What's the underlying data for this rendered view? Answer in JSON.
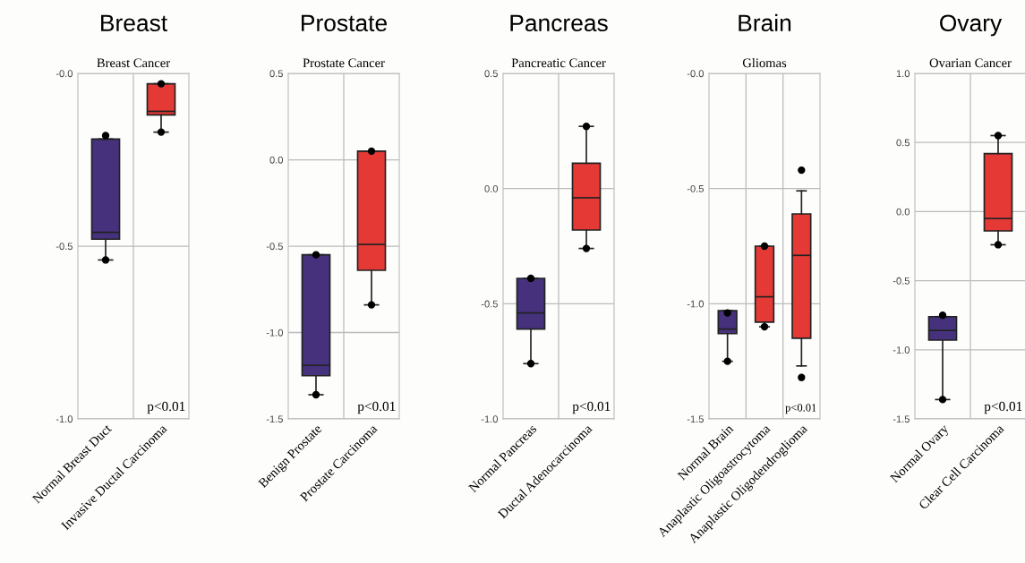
{
  "chart_data": [
    {
      "type": "box",
      "title": "Breast",
      "subtitle": "Breast Cancer",
      "categories": [
        "Normal Breast Duct",
        "Invasive Ductal Carcinoma"
      ],
      "colors": [
        "#46317d",
        "#e53935"
      ],
      "boxes": [
        {
          "low": -0.54,
          "q1": -0.48,
          "median": -0.46,
          "q3": -0.19,
          "high": -0.19,
          "outliers": [
            -0.18,
            -0.54
          ]
        },
        {
          "low": -0.17,
          "q1": -0.12,
          "median": -0.11,
          "q3": -0.03,
          "high": -0.03,
          "outliers": [
            -0.03,
            -0.17
          ]
        }
      ],
      "ylim": [
        -1.0,
        0.0
      ],
      "yticks": [
        {
          "value": -1.0,
          "label": "-1.0"
        },
        {
          "value": -0.5,
          "label": "-0.5"
        },
        {
          "value": 0.0,
          "label": "-0.0"
        }
      ],
      "grid": "y",
      "annotations": [
        "p<0.01"
      ]
    },
    {
      "type": "box",
      "title": "Prostate",
      "subtitle": "Prostate Cancer",
      "categories": [
        "Benign Prostate",
        "Prostate Carcinoma"
      ],
      "colors": [
        "#46317d",
        "#e53935"
      ],
      "boxes": [
        {
          "low": -1.36,
          "q1": -1.25,
          "median": -1.19,
          "q3": -0.55,
          "high": -0.55,
          "outliers": [
            -0.55,
            -1.36
          ]
        },
        {
          "low": -0.84,
          "q1": -0.64,
          "median": -0.49,
          "q3": 0.05,
          "high": 0.05,
          "outliers": [
            0.05,
            -0.84
          ]
        }
      ],
      "ylim": [
        -1.5,
        0.5
      ],
      "yticks": [
        {
          "value": -1.5,
          "label": "-1.5"
        },
        {
          "value": -1.0,
          "label": "-1.0"
        },
        {
          "value": -0.5,
          "label": "-0.5"
        },
        {
          "value": 0.0,
          "label": "0.0"
        },
        {
          "value": 0.5,
          "label": "0.5"
        }
      ],
      "grid": "y",
      "annotations": [
        "p<0.01"
      ]
    },
    {
      "type": "box",
      "title": "Pancreas",
      "subtitle": "Pancreatic Cancer",
      "categories": [
        "Normal Pancreas",
        "Ductal Adenocarcinoma"
      ],
      "colors": [
        "#46317d",
        "#e53935"
      ],
      "boxes": [
        {
          "low": -0.76,
          "q1": -0.61,
          "median": -0.54,
          "q3": -0.39,
          "high": -0.39,
          "outliers": [
            -0.39,
            -0.76
          ]
        },
        {
          "low": -0.26,
          "q1": -0.18,
          "median": -0.04,
          "q3": 0.11,
          "high": 0.27,
          "outliers": [
            0.27,
            -0.26
          ]
        }
      ],
      "ylim": [
        -1.0,
        0.5
      ],
      "yticks": [
        {
          "value": -1.0,
          "label": "-1.0"
        },
        {
          "value": -0.5,
          "label": "-0.5"
        },
        {
          "value": 0.0,
          "label": "0.0"
        },
        {
          "value": 0.5,
          "label": "0.5"
        }
      ],
      "grid": "y",
      "annotations": [
        "p<0.01"
      ]
    },
    {
      "type": "box",
      "title": "Brain",
      "subtitle": "Gliomas",
      "categories": [
        "Normal Brain",
        "Anaplastic Oligoastrocytoma",
        "Anaplastic Oligodendroglioma"
      ],
      "colors": [
        "#46317d",
        "#e53935",
        "#e53935"
      ],
      "boxes": [
        {
          "low": -1.25,
          "q1": -1.13,
          "median": -1.11,
          "q3": -1.03,
          "high": -1.03,
          "outliers": [
            -1.04,
            -1.25
          ]
        },
        {
          "low": -1.1,
          "q1": -1.08,
          "median": -0.97,
          "q3": -0.75,
          "high": -0.75,
          "outliers": [
            -0.75,
            -1.1
          ]
        },
        {
          "low": -1.27,
          "q1": -1.15,
          "median": -0.79,
          "q3": -0.61,
          "high": -0.51,
          "outliers": [
            -0.42,
            -1.32
          ]
        }
      ],
      "ylim": [
        -1.5,
        0.0
      ],
      "yticks": [
        {
          "value": -1.5,
          "label": "-1.5"
        },
        {
          "value": -1.0,
          "label": "-1.0"
        },
        {
          "value": -0.5,
          "label": "-0.5"
        },
        {
          "value": 0.0,
          "label": "-0.0"
        }
      ],
      "grid": "y",
      "annotations": [
        "p<0.01"
      ]
    },
    {
      "type": "box",
      "title": "Ovary",
      "subtitle": "Ovarian Cancer",
      "categories": [
        "Normal Ovary",
        "Clear Cell Carcinoma"
      ],
      "colors": [
        "#46317d",
        "#e53935"
      ],
      "boxes": [
        {
          "low": -1.36,
          "q1": -0.93,
          "median": -0.86,
          "q3": -0.76,
          "high": -0.76,
          "outliers": [
            -0.75,
            -1.36
          ]
        },
        {
          "low": -0.24,
          "q1": -0.14,
          "median": -0.05,
          "q3": 0.42,
          "high": 0.55,
          "outliers": [
            0.55,
            -0.24
          ]
        }
      ],
      "ylim": [
        -1.5,
        1.0
      ],
      "yticks": [
        {
          "value": -1.5,
          "label": "-1.5"
        },
        {
          "value": -1.0,
          "label": "-1.0"
        },
        {
          "value": -0.5,
          "label": "-0.5"
        },
        {
          "value": 0.0,
          "label": "0.0"
        },
        {
          "value": 0.5,
          "label": "0.5"
        },
        {
          "value": 1.0,
          "label": "1.0"
        }
      ],
      "grid": "y",
      "annotations": [
        "p<0.01"
      ]
    }
  ]
}
